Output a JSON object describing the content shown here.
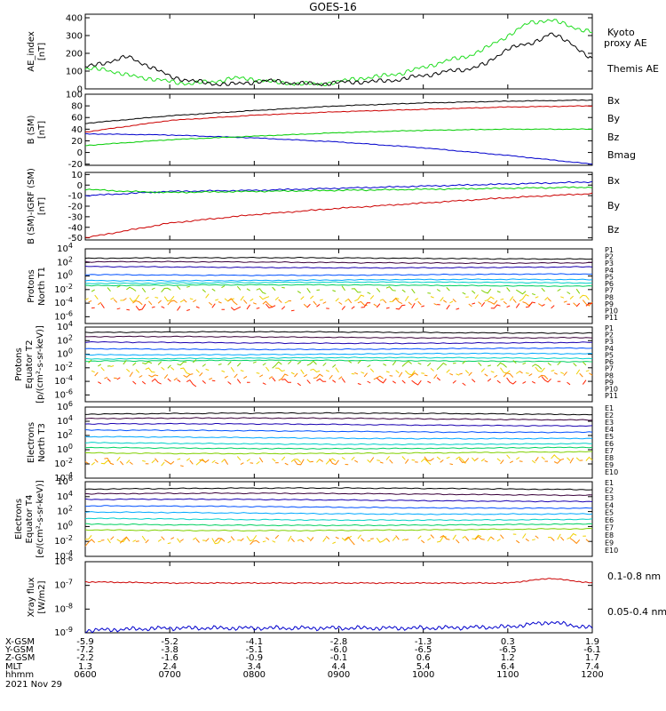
{
  "title": "GOES-16",
  "date": "2021 Nov 29",
  "colors": {
    "frame": "#000000",
    "black": "#000000",
    "blue": "#0000cc",
    "green": "#00cc00",
    "red": "#cc0000",
    "ae_kyoto": "#22dd22",
    "ae_themis": "#000000",
    "ch_colors": [
      "#000000",
      "#3a003a",
      "#1a00b0",
      "#0050ff",
      "#00a8ff",
      "#00d0c8",
      "#00d060",
      "#80d000",
      "#f0d000",
      "#ff8800",
      "#ff2200",
      "#dd0000"
    ]
  },
  "chart_data": [
    {
      "type": "line",
      "id": "ae",
      "ylabel": "AE_index\n[nT]",
      "ylim": [
        0,
        420
      ],
      "yticks": [
        "0",
        "100",
        "200",
        "300",
        "400"
      ],
      "legend": [
        {
          "label": "Kyoto\nproxy AE",
          "color": "#22dd22"
        },
        {
          "label": "Themis AE",
          "color": "#000000"
        }
      ],
      "x": [
        0.0,
        0.25,
        0.5,
        0.75,
        1.0,
        1.25,
        1.5,
        1.75,
        2.0,
        2.25,
        2.5,
        2.75,
        3.0,
        3.25,
        3.5,
        3.75,
        4.0,
        4.25,
        4.5,
        4.75,
        5.0,
        5.25,
        5.5,
        5.75,
        6.0
      ],
      "series": [
        {
          "name": "Kyoto proxy AE",
          "values": [
            110,
            110,
            75,
            60,
            40,
            30,
            40,
            60,
            55,
            35,
            30,
            25,
            40,
            60,
            70,
            90,
            120,
            155,
            180,
            230,
            300,
            370,
            390,
            350,
            320
          ]
        },
        {
          "name": "Themis AE",
          "values": [
            120,
            150,
            180,
            130,
            70,
            45,
            30,
            25,
            40,
            45,
            30,
            28,
            35,
            40,
            42,
            55,
            75,
            95,
            110,
            140,
            230,
            250,
            310,
            260,
            160
          ]
        }
      ]
    },
    {
      "type": "line",
      "id": "bsm",
      "ylabel": "B (SM)\n[nT]",
      "ylim": [
        -22,
        100
      ],
      "yticks": [
        "-20",
        "0",
        "20",
        "40",
        "60",
        "80",
        "100"
      ],
      "legend": [
        {
          "label": "Bx",
          "color": "#0000cc"
        },
        {
          "label": "By",
          "color": "#00cc00"
        },
        {
          "label": "Bz",
          "color": "#cc0000"
        },
        {
          "label": "Bmag",
          "color": "#000000"
        }
      ],
      "x": [
        0,
        1,
        2,
        3,
        4,
        5,
        6
      ],
      "series": [
        {
          "name": "Bx",
          "values": [
            32,
            30,
            25,
            18,
            8,
            -5,
            -20
          ]
        },
        {
          "name": "By",
          "values": [
            12,
            22,
            28,
            34,
            38,
            40,
            40
          ]
        },
        {
          "name": "Bz",
          "values": [
            35,
            55,
            64,
            70,
            74,
            78,
            80
          ]
        },
        {
          "name": "Bmag",
          "values": [
            50,
            63,
            72,
            80,
            85,
            88,
            90
          ]
        }
      ]
    },
    {
      "type": "line",
      "id": "bigrf",
      "ylabel": "B (SM)-IGRF (SM)\n[nT]",
      "ylim": [
        -52,
        12
      ],
      "yticks": [
        "-50",
        "-40",
        "-30",
        "-20",
        "-10",
        "0",
        "10"
      ],
      "legend": [
        {
          "label": "Bx",
          "color": "#0000cc"
        },
        {
          "label": "By",
          "color": "#00cc00"
        },
        {
          "label": "Bz",
          "color": "#cc0000"
        }
      ],
      "x": [
        0,
        0.5,
        1,
        2,
        3,
        4,
        5,
        6
      ],
      "series": [
        {
          "name": "Bx",
          "values": [
            -10,
            -8,
            -6,
            -5,
            -3,
            -1,
            1,
            3
          ]
        },
        {
          "name": "By",
          "values": [
            -4,
            -6,
            -7,
            -6,
            -5,
            -4,
            -3,
            -2
          ]
        },
        {
          "name": "Bz",
          "values": [
            -50,
            -43,
            -36,
            -28,
            -22,
            -17,
            -12,
            -8
          ]
        }
      ]
    },
    {
      "type": "line",
      "id": "pn",
      "ylabel": "Protons\nNorth T1",
      "ylim_log": [
        -7,
        4
      ],
      "ytick_exps": [
        4,
        2,
        0,
        -2,
        -4,
        -6
      ],
      "channels": [
        "P1",
        "P2",
        "P3",
        "P4",
        "P5",
        "P6",
        "P7",
        "P8",
        "P9",
        "P10",
        "P11"
      ],
      "levels": [
        2.6,
        2.0,
        1.3,
        0.2,
        -0.6,
        -1.0,
        -1.4,
        -2.1,
        -3.3,
        -3.9,
        -4.5
      ]
    },
    {
      "type": "line",
      "id": "pe",
      "ylabel": "Protons\nEquator T2\n[p/(cm²-s-sr-keV)]",
      "ylim_log": [
        -7,
        4
      ],
      "ytick_exps": [
        4,
        2,
        0,
        -2,
        -4,
        -6
      ],
      "channels": [
        "P1",
        "P2",
        "P3",
        "P4",
        "P5",
        "P6",
        "P7",
        "P8",
        "P9",
        "P10",
        "P11"
      ],
      "levels": [
        3.2,
        2.5,
        1.7,
        0.8,
        0.0,
        -0.6,
        -1.0,
        -1.5,
        -2.4,
        -3.2,
        -4.0
      ]
    },
    {
      "type": "line",
      "id": "en",
      "ylabel": "Electrons\nNorth T3",
      "ylim_log": [
        -4,
        6
      ],
      "ytick_exps": [
        6,
        4,
        2,
        0,
        -2,
        -4
      ],
      "channels": [
        "E1",
        "E2",
        "E3",
        "E4",
        "E5",
        "E6",
        "E7",
        "E8",
        "E9",
        "E10"
      ],
      "levels": [
        5.0,
        4.3,
        3.5,
        2.6,
        1.7,
        0.9,
        0.3,
        -0.4,
        -1.5,
        -1.6
      ]
    },
    {
      "type": "line",
      "id": "ee",
      "ylabel": "Electrons\nEquator T4\n[e/(cm²-s-sr-keV)]",
      "ylim_log": [
        -4,
        6
      ],
      "ytick_exps": [
        6,
        4,
        2,
        0,
        -2,
        -4
      ],
      "channels": [
        "E1",
        "E2",
        "E3",
        "E4",
        "E5",
        "E6",
        "E7",
        "E8",
        "E9",
        "E10"
      ],
      "levels": [
        5.0,
        4.3,
        3.5,
        2.6,
        1.8,
        1.0,
        0.3,
        -0.4,
        -1.6,
        -1.8
      ]
    },
    {
      "type": "line",
      "id": "xray",
      "ylabel": "Xray flux\n[W/m2]",
      "ylim_log": [
        -9,
        -6
      ],
      "ytick_exps": [
        -6,
        -7,
        -8,
        -9
      ],
      "legend": [
        {
          "label": "0.1-0.8 nm",
          "color": "#cc0000"
        },
        {
          "label": "0.05-0.4 nm",
          "color": "#0000cc"
        }
      ],
      "x": [
        0,
        1,
        2,
        3,
        4,
        5,
        5.5,
        6
      ],
      "series": [
        {
          "name": "0.1-0.8 nm",
          "values": [
            -6.85,
            -6.9,
            -6.9,
            -6.9,
            -6.9,
            -6.9,
            -6.7,
            -6.9
          ]
        },
        {
          "name": "0.05-0.4 nm",
          "values": [
            -8.9,
            -8.8,
            -8.8,
            -8.8,
            -8.8,
            -8.75,
            -8.55,
            -8.8
          ]
        }
      ]
    }
  ],
  "orbit": {
    "row_labels": [
      "X-GSM",
      "Y-GSM",
      "Z-GSM",
      "MLT",
      "hhmm"
    ],
    "columns": [
      [
        "-5.9",
        "-7.2",
        "-2.2",
        "1.3",
        "0600"
      ],
      [
        "-5.2",
        "-3.8",
        "-1.6",
        "2.4",
        "0700"
      ],
      [
        "-4.1",
        "-5.1",
        "-0.9",
        "3.4",
        "0800"
      ],
      [
        "-2.8",
        "-6.0",
        "-0.1",
        "4.4",
        "0900"
      ],
      [
        "-1.3",
        "-6.5",
        "0.6",
        "5.4",
        "1000"
      ],
      [
        "0.3",
        "-6.5",
        "1.2",
        "6.4",
        "1100"
      ],
      [
        "1.9",
        "-6.1",
        "1.7",
        "7.4",
        "1200"
      ]
    ]
  }
}
